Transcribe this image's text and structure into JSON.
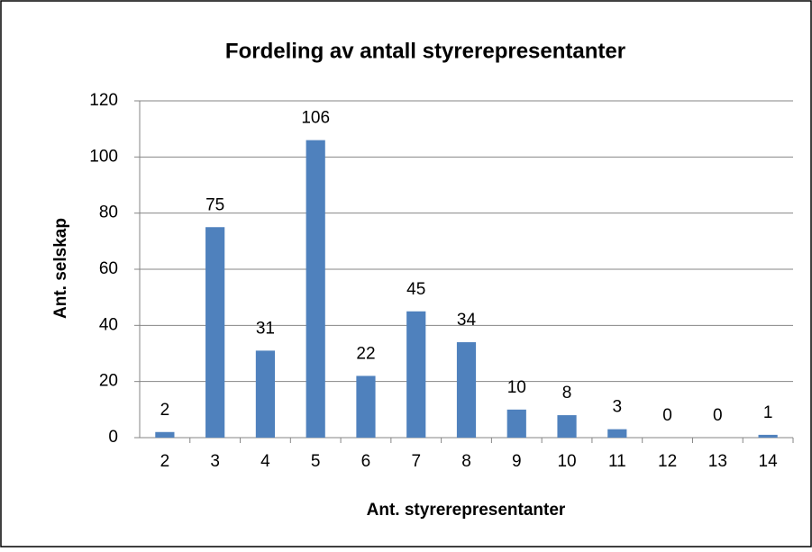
{
  "chart_data": {
    "type": "bar",
    "title": "Fordeling av antall styrerepresentanter",
    "x_label": "Ant. styrerepresentanter",
    "y_label": "Ant. selskap",
    "categories": [
      "2",
      "3",
      "4",
      "5",
      "6",
      "7",
      "8",
      "9",
      "10",
      "11",
      "12",
      "13",
      "14"
    ],
    "values": [
      2,
      75,
      31,
      106,
      22,
      45,
      34,
      10,
      8,
      3,
      0,
      0,
      1
    ],
    "color": "#4f81bd",
    "ylim": [
      0,
      120
    ],
    "yticks": [
      0,
      20,
      40,
      60,
      80,
      100,
      120
    ],
    "grid": true,
    "legend": false
  }
}
